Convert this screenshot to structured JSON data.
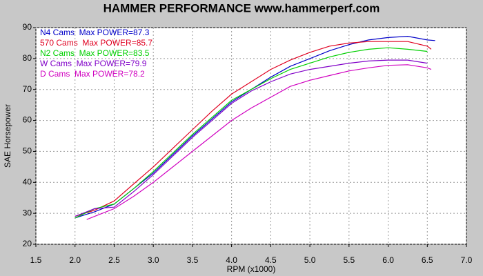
{
  "chart_data": {
    "type": "line",
    "title": "HAMMER PERFORMANCE www.hammerperf.com",
    "xlabel": "RPM (x1000)",
    "ylabel": "SAE Horsepower",
    "xlim": [
      1.5,
      7.0
    ],
    "ylim": [
      20,
      90
    ],
    "xticks": [
      1.5,
      {
        "value": 2,
        "label": "2.0"
      },
      2.5,
      {
        "value": 3,
        "label": "3.0"
      },
      3.5,
      {
        "value": 4,
        "label": "4.0"
      },
      4.5,
      {
        "value": 5,
        "label": "5.0"
      },
      5.5,
      {
        "value": 6,
        "label": "6.0"
      },
      6.5,
      {
        "value": 7,
        "label": "7.0"
      }
    ],
    "yticks": [
      20,
      30,
      40,
      50,
      60,
      70,
      80,
      90
    ],
    "grid": true,
    "legend": "top-left",
    "series": [
      {
        "name": "N4 Cams  Max POWER=87.3",
        "color": "#0000c8",
        "x": [
          2.0,
          2.25,
          2.5,
          2.75,
          3.0,
          3.25,
          3.5,
          3.75,
          4.0,
          4.25,
          4.5,
          4.75,
          5.0,
          5.25,
          5.5,
          5.75,
          6.0,
          6.25,
          6.5,
          6.6
        ],
        "values": [
          28.5,
          30.5,
          33,
          38,
          43,
          49,
          55,
          60.5,
          66,
          70,
          74,
          77.5,
          80,
          82.5,
          84.5,
          86,
          86.8,
          87.2,
          86,
          85.8
        ]
      },
      {
        "name": "570 Cams  Max POWER=85.7",
        "color": "#e00020",
        "x": [
          2.0,
          2.25,
          2.5,
          2.75,
          3.0,
          3.25,
          3.5,
          3.75,
          4.0,
          4.25,
          4.5,
          4.75,
          5.0,
          5.25,
          5.5,
          5.75,
          6.0,
          6.25,
          6.5,
          6.55
        ],
        "values": [
          29,
          31,
          34,
          39.5,
          45,
          51,
          57,
          63,
          68.5,
          72.5,
          76.5,
          79.5,
          82,
          84,
          85,
          85.5,
          85.5,
          85.5,
          84,
          83
        ]
      },
      {
        "name": "N2 Cams  Max POWER=83.5",
        "color": "#00d000",
        "x": [
          2.0,
          2.25,
          2.5,
          2.75,
          3.0,
          3.25,
          3.5,
          3.75,
          4.0,
          4.25,
          4.5,
          4.75,
          5.0,
          5.25,
          5.5,
          5.75,
          6.0,
          6.25,
          6.5
        ],
        "values": [
          28.5,
          31.5,
          33,
          38,
          43.5,
          49.5,
          55.5,
          61,
          66.5,
          70,
          73.5,
          76.5,
          78.5,
          80.5,
          82,
          83,
          83.5,
          83,
          82.3
        ]
      },
      {
        "name": "W Cams  Max POWER=79.9",
        "color": "#8000c8",
        "x": [
          2.0,
          2.25,
          2.5,
          2.75,
          3.0,
          3.25,
          3.5,
          3.75,
          4.0,
          4.25,
          4.5,
          4.75,
          5.0,
          5.25,
          5.5,
          5.75,
          6.0,
          6.25,
          6.5
        ],
        "values": [
          29,
          31.5,
          32,
          37,
          42.5,
          48.5,
          54.5,
          60,
          65.5,
          69.5,
          72.5,
          75,
          76.5,
          77.5,
          78.5,
          79.2,
          79.5,
          79.5,
          78.5
        ]
      },
      {
        "name": "D Cams  Max POWER=78.2",
        "color": "#d000c0",
        "x": [
          2.15,
          2.25,
          2.5,
          2.75,
          3.0,
          3.25,
          3.5,
          3.75,
          4.0,
          4.25,
          4.5,
          4.75,
          5.0,
          5.25,
          5.5,
          5.75,
          6.0,
          6.25,
          6.5,
          6.55
        ],
        "values": [
          28,
          29,
          31.5,
          35.5,
          40,
          45,
          50,
          55,
          60,
          64,
          67.5,
          71,
          73,
          74.5,
          76,
          77,
          77.8,
          78,
          77,
          76.5
        ]
      }
    ]
  }
}
